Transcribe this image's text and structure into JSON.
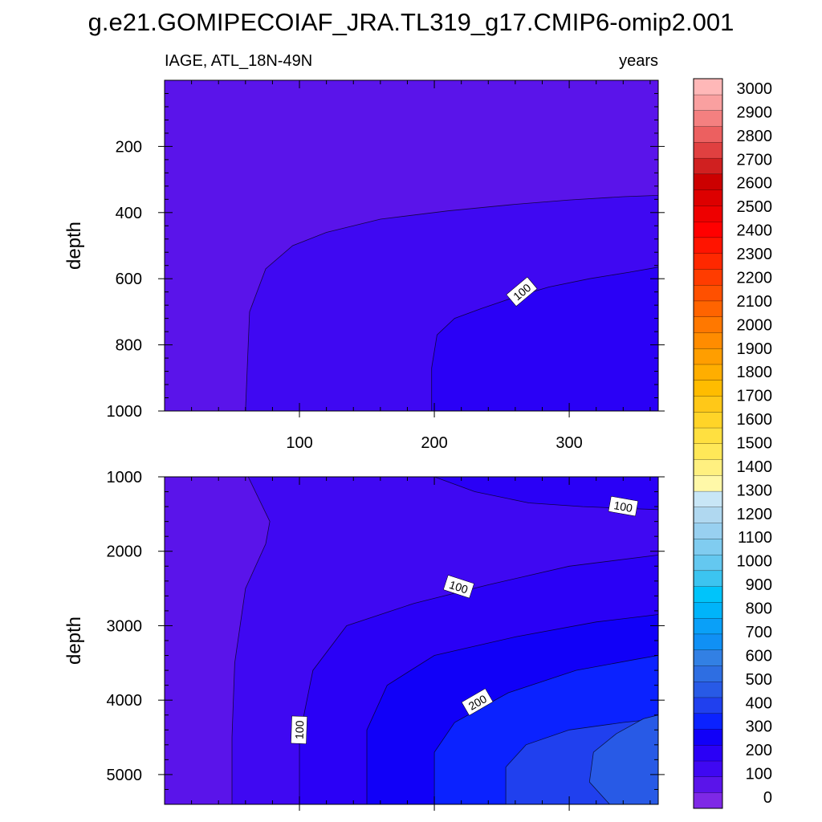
{
  "chart_data": {
    "type": "filled-contour",
    "title": "g.e21.GOMIPECOIAF_JRA.TL319_g17.CMIP6-omip2.001",
    "variable": "IAGE, ATL_18N-49N",
    "units": "years",
    "xlim": [
      0,
      366
    ],
    "xticks": [
      "100",
      "200",
      "300"
    ],
    "ylabel": "depth",
    "panels": [
      {
        "name": "upper",
        "ylim": [
          0,
          1000
        ],
        "yticks": [
          "200",
          "400",
          "600",
          "800",
          "1000"
        ],
        "contour_labels": [
          "100"
        ],
        "contours": [
          {
            "level": 50,
            "x": [
              60,
              63,
              75,
              95,
              120,
              160,
              210,
              260,
              300,
              340,
              366
            ],
            "y": [
              1000,
              700,
              570,
              500,
              460,
              420,
              395,
              375,
              362,
              352,
              348
            ]
          },
          {
            "level": 100,
            "x": [
              198,
              198,
              202,
              215,
              235,
              260,
              285,
              315,
              345,
              366
            ],
            "y": [
              1000,
              870,
              770,
              720,
              690,
              655,
              625,
              600,
              580,
              565
            ]
          }
        ]
      },
      {
        "name": "lower",
        "ylim": [
          1000,
          5400
        ],
        "yticks": [
          "1000",
          "2000",
          "3000",
          "4000",
          "5000"
        ],
        "contour_labels": [
          "100",
          "100",
          "100",
          "200"
        ],
        "contours": [
          {
            "level": 50,
            "x": [
              50,
              50,
              52,
              60,
              75,
              78,
              62
            ],
            "y": [
              5400,
              4500,
              3500,
              2500,
              1900,
              1600,
              1000
            ]
          },
          {
            "level": 100,
            "x": [
              100,
              100,
              110,
              135,
              185,
              240,
              300,
              366
            ],
            "y": [
              5400,
              4500,
              3600,
              3000,
              2700,
              2450,
              2200,
              2050
            ]
          },
          {
            "level": 100,
            "x": [
              200,
              230,
              270,
              310,
              350,
              366
            ],
            "y": [
              1000,
              1200,
              1350,
              1400,
              1430,
              1440
            ]
          },
          {
            "level": 150,
            "x": [
              150,
              150,
              165,
              200,
              260,
              320,
              366
            ],
            "y": [
              5400,
              4400,
              3800,
              3400,
              3150,
              2950,
              2850
            ]
          },
          {
            "level": 200,
            "x": [
              200,
              200,
              215,
              255,
              305,
              350,
              366
            ],
            "y": [
              5400,
              4700,
              4300,
              3900,
              3600,
              3450,
              3400
            ]
          },
          {
            "level": 250,
            "x": [
              253,
              253,
              268,
              300,
              340,
              366
            ],
            "y": [
              5400,
              4900,
              4600,
              4400,
              4300,
              4250
            ]
          },
          {
            "level": 300,
            "x": [
              330,
              315,
              318,
              335,
              355,
              366
            ],
            "y": [
              5400,
              5100,
              4700,
              4450,
              4250,
              4200
            ]
          }
        ]
      }
    ],
    "colorbar": {
      "levels": [
        "0",
        "100",
        "200",
        "300",
        "400",
        "500",
        "600",
        "700",
        "800",
        "900",
        "1000",
        "1100",
        "1200",
        "1300",
        "1400",
        "1500",
        "1600",
        "1700",
        "1800",
        "1900",
        "2000",
        "2100",
        "2200",
        "2300",
        "2400",
        "2500",
        "2600",
        "2700",
        "2800",
        "2900",
        "3000"
      ],
      "colors": [
        "#7E28E6",
        "#5A14EA",
        "#3F08F2",
        "#2A00F6",
        "#1100F8",
        "#0B22FF",
        "#2040EE",
        "#285AE6",
        "#2E6EE2",
        "#3280E4",
        "#1090F5",
        "#0AA0F8",
        "#00B4FA",
        "#00C4FA",
        "#3CC4F0",
        "#64C8F0",
        "#80CCF0",
        "#98D0F0",
        "#B0D8F0",
        "#C8E6F6",
        "#FFF8A8",
        "#FFF080",
        "#FFE858",
        "#FFE040",
        "#FFD428",
        "#FFC818",
        "#FFBC00",
        "#FFAE00",
        "#FF9E00",
        "#FF8C00",
        "#FF7800",
        "#FF6400",
        "#FF5000",
        "#FF3C00",
        "#FF2800",
        "#FF1400",
        "#FF0000",
        "#EE0000",
        "#DD0000",
        "#CC0000",
        "#D02020",
        "#E04040",
        "#EC6060",
        "#F48080",
        "#FAA0A0",
        "#FFB8B8"
      ]
    }
  }
}
